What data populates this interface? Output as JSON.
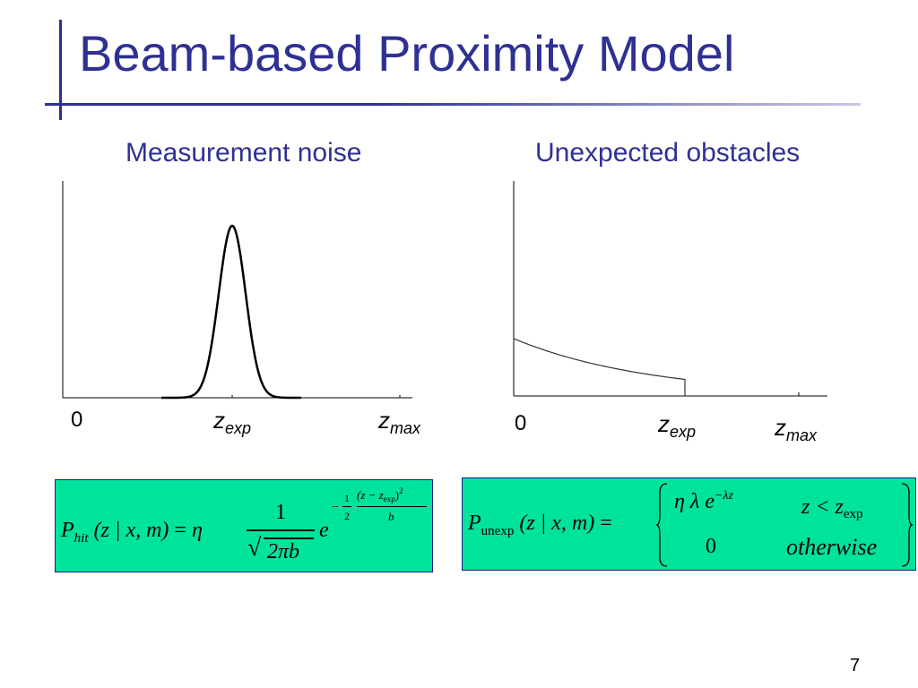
{
  "slide": {
    "title": "Beam-based Proximity Model",
    "page_number": "7",
    "accent_color": "#2e3192",
    "formula_box_color": "#00e39c"
  },
  "left_panel": {
    "subtitle": "Measurement noise",
    "x_label_zero": "0",
    "x_label_mid": {
      "base": "z",
      "sub": "exp"
    },
    "x_label_max": {
      "base": "z",
      "sub": "max"
    },
    "formula": {
      "lhs_P": "P",
      "lhs_sub": "hit",
      "lhs_args": "(z | x, m)",
      "equals": "=",
      "eta": "η",
      "frac_num": "1",
      "frac_den": "2πb",
      "e": "e",
      "exp_minus": "−",
      "exp_half_num": "1",
      "exp_half_den": "2",
      "exp_num": "(z − z",
      "exp_num_sub": "exp",
      "exp_num_close": ")",
      "exp_num_sup": "2",
      "exp_den": "b"
    }
  },
  "right_panel": {
    "subtitle": "Unexpected obstacles",
    "x_label_zero": "0",
    "x_label_mid": {
      "base": "z",
      "sub": "exp"
    },
    "x_label_max": {
      "base": "z",
      "sub": "max"
    },
    "formula": {
      "lhs_P": "P",
      "lhs_sub": "unexp",
      "lhs_args": "(z | x, m)",
      "equals": "=",
      "case1_expr": "η λ e",
      "case1_sup": "−λz",
      "case1_cond": "z < z",
      "case1_cond_sub": "exp",
      "case2_expr": "0",
      "case2_cond": "otherwise"
    }
  }
}
